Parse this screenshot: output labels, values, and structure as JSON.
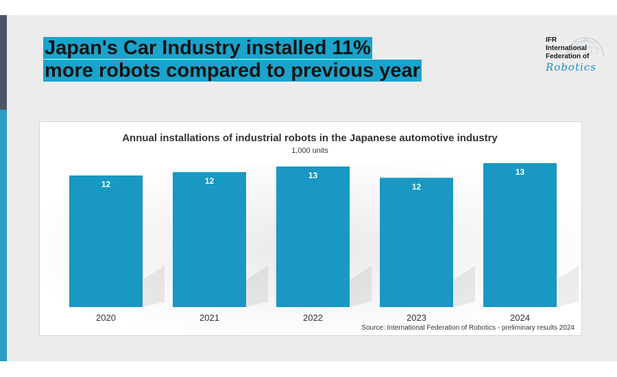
{
  "headline": {
    "line1": "Japan's Car Industry installed 11%",
    "line2": "more robots compared to previous year"
  },
  "logo": {
    "line1": "IFR",
    "line2": "International",
    "line3": "Federation of",
    "script": "Robotics"
  },
  "colors": {
    "bar": "#1898c2",
    "headline_highlight": "#1aa3cc",
    "sidebar_dark": "#4c5566",
    "sidebar_blue": "#2a9cc6"
  },
  "chart_data": {
    "type": "bar",
    "title": "Annual installations of industrial robots in the Japanese automotive industry",
    "subtitle": "1,000 units",
    "categories": [
      "2020",
      "2021",
      "2022",
      "2023",
      "2024"
    ],
    "values": [
      11.7,
      12.0,
      12.5,
      11.5,
      12.8
    ],
    "data_labels": [
      "12",
      "12",
      "13",
      "12",
      "13"
    ],
    "source": "Source: International Federation of Robotics - preliminary results 2024",
    "xlabel": "",
    "ylabel": "",
    "ylim": [
      0,
      12.8
    ],
    "grid": false,
    "legend": "none"
  }
}
